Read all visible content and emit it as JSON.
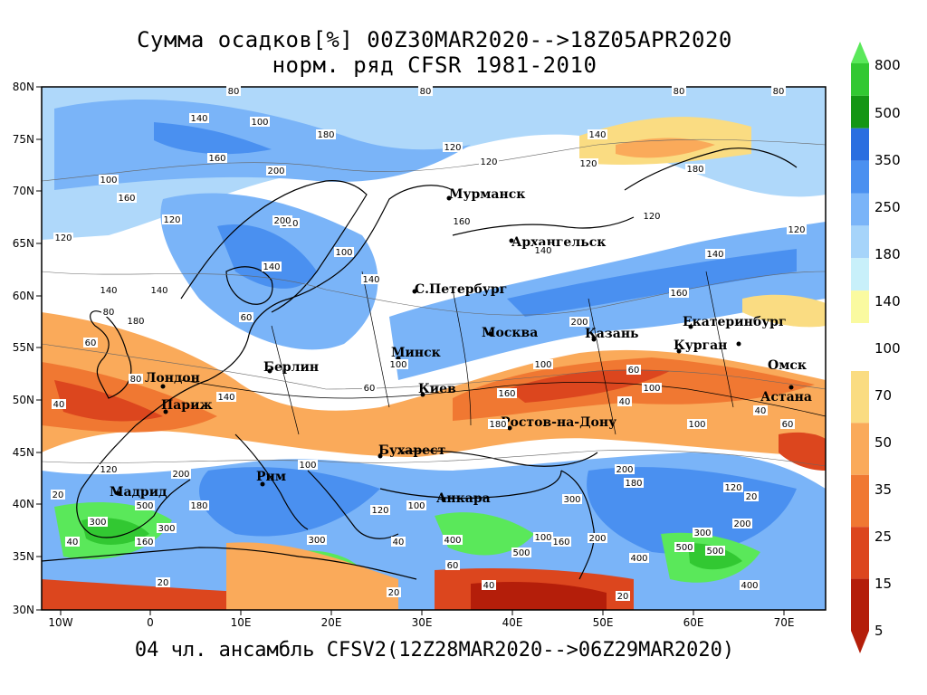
{
  "title_line1": "Сумма осадков[%] 00Z30MAR2020-->18Z05APR2020",
  "title_line2": "норм. ряд CFSR 1981-2010",
  "footer": "04 чл. ансамбль CFSV2(12Z28MAR2020-->06Z29MAR2020)",
  "lat_labels": [
    "80N",
    "75N",
    "70N",
    "65N",
    "60N",
    "55N",
    "50N",
    "45N",
    "40N",
    "35N",
    "30N"
  ],
  "lon_labels": [
    "10W",
    "0",
    "10E",
    "20E",
    "30E",
    "40E",
    "50E",
    "60E",
    "70E"
  ],
  "cities": [
    "Мурманск",
    "Архангельск",
    "С.Петербург",
    "Москва",
    "Казань",
    "Екатеринбург",
    "Курган",
    "Омск",
    "Астана",
    "Минск",
    "Берлин",
    "Лондон",
    "Париж",
    "Киев",
    "Ростов-на-Дону",
    "Бухарест",
    "Рим",
    "Мадрид",
    "Анкара"
  ],
  "colorbar": {
    "labels": [
      "800",
      "500",
      "350",
      "250",
      "180",
      "140",
      "100",
      "70",
      "50",
      "35",
      "25",
      "15",
      "5"
    ],
    "colors": [
      "#5ae85a",
      "#32c832",
      "#149614",
      "#2a6ee0",
      "#4a90f0",
      "#7ab4f8",
      "#a6d4fa",
      "#c8f0fa",
      "#fafaa0",
      "#fadc82",
      "#faaa5a",
      "#f07832",
      "#dc461e",
      "#b41e0a"
    ]
  },
  "contour_labels": [
    "80",
    "140",
    "100",
    "120",
    "160",
    "200",
    "180",
    "60",
    "40",
    "20",
    "300",
    "500",
    "400"
  ]
}
